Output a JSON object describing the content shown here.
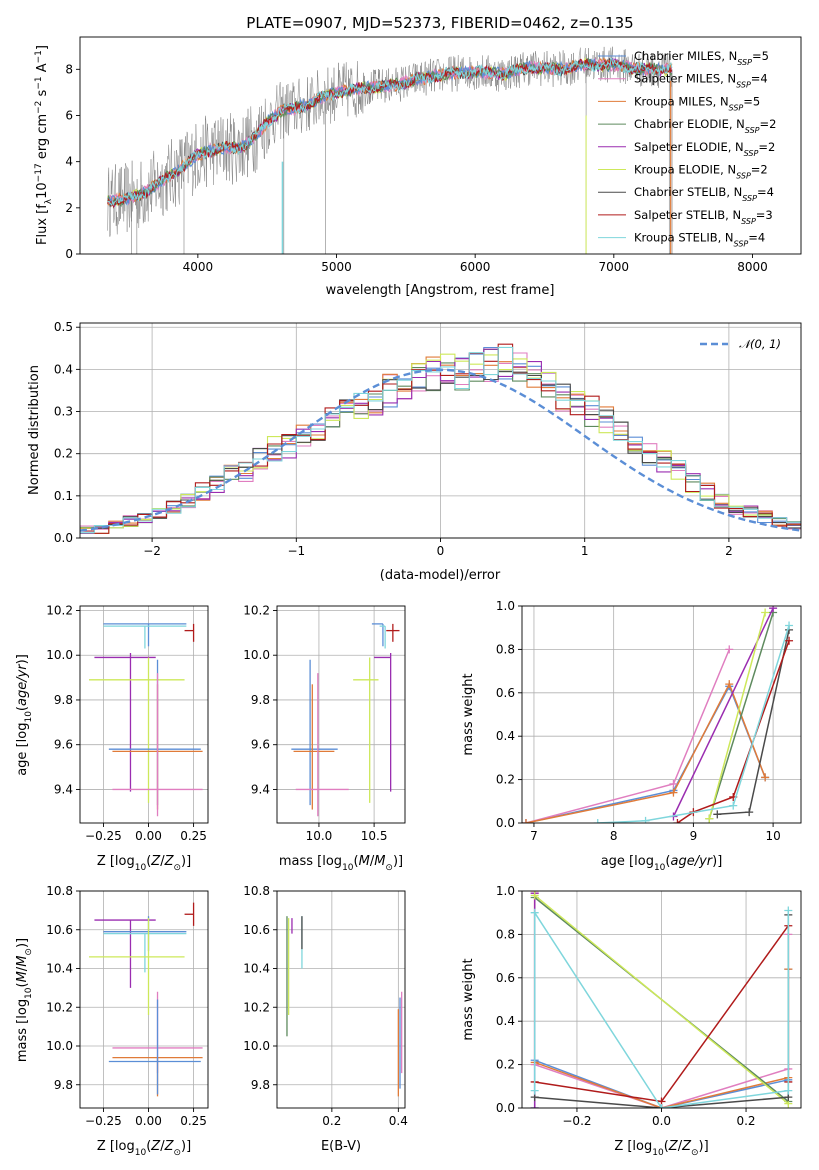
{
  "figure_title": "PLATE=0907, MJD=52373, FIBERID=0462, z=0.135",
  "colors": {
    "chabrier_miles": "#5b8ed6",
    "salpeter_miles": "#e07ec0",
    "kroupa_miles": "#e07b39",
    "chabrier_elodie": "#5e8a5e",
    "salpeter_elodie": "#9a2db0",
    "kroupa_elodie": "#cde85a",
    "chabrier_stelib": "#4a4a4a",
    "salpeter_stelib": "#b01b1b",
    "kroupa_stelib": "#7fd6dc",
    "data": "#808080",
    "grid": "#b0b0b0"
  },
  "chart_data": [
    {
      "id": "spectrum",
      "type": "line",
      "title": "PLATE=0907, MJD=52373, FIBERID=0462, z=0.135",
      "xlabel": "wavelength [Angstrom, rest frame]",
      "ylabel": "Flux [f_λ 10^-17 erg cm^-2 s^-1 A^-1]",
      "xlim": [
        3150,
        8350
      ],
      "ylim": [
        0,
        9.4
      ],
      "xticks": [
        4000,
        5000,
        6000,
        7000,
        8000
      ],
      "yticks": [
        0,
        2,
        4,
        6,
        8
      ],
      "grid": false,
      "legend_position": "top-right",
      "continuum": {
        "x": [
          3350,
          3500,
          3600,
          3700,
          3800,
          3900,
          4000,
          4100,
          4200,
          4300,
          4400,
          4500,
          4600,
          4700,
          4800,
          4900,
          5000,
          5200,
          5400,
          5600,
          5800,
          6000,
          6200,
          6400,
          6600,
          6800,
          7000,
          7200,
          7400
        ],
        "y": [
          2.3,
          2.4,
          2.6,
          3.0,
          3.4,
          3.8,
          4.3,
          4.5,
          4.6,
          4.6,
          5.0,
          5.7,
          6.2,
          6.3,
          6.5,
          6.8,
          7.0,
          7.2,
          7.3,
          7.6,
          7.8,
          7.9,
          7.8,
          8.1,
          8.0,
          8.2,
          8.2,
          8.0,
          8.0
        ]
      },
      "series": [
        {
          "name": "Chabrier MILES, N_SSP=5",
          "legend_main": "Chabrier MILES, N",
          "legend_sub": "SSP",
          "legend_tail": "=5",
          "color_key": "chabrier_miles"
        },
        {
          "name": "Salpeter MILES, N_SSP=4",
          "legend_main": "Salpeter MILES, N",
          "legend_sub": "SSP",
          "legend_tail": "=4",
          "color_key": "salpeter_miles"
        },
        {
          "name": "Kroupa MILES, N_SSP=5",
          "legend_main": "Kroupa MILES, N",
          "legend_sub": "SSP",
          "legend_tail": "=5",
          "color_key": "kroupa_miles"
        },
        {
          "name": "Chabrier ELODIE, N_SSP=2",
          "legend_main": "Chabrier ELODIE, N",
          "legend_sub": "SSP",
          "legend_tail": "=2",
          "color_key": "chabrier_elodie"
        },
        {
          "name": "Salpeter ELODIE, N_SSP=2",
          "legend_main": "Salpeter ELODIE, N",
          "legend_sub": "SSP",
          "legend_tail": "=2",
          "color_key": "salpeter_elodie"
        },
        {
          "name": "Kroupa ELODIE, N_SSP=2",
          "legend_main": "Kroupa ELODIE, N",
          "legend_sub": "SSP",
          "legend_tail": "=2",
          "color_key": "kroupa_elodie"
        },
        {
          "name": "Chabrier STELIB, N_SSP=4",
          "legend_main": "Chabrier STELIB, N",
          "legend_sub": "SSP",
          "legend_tail": "=4",
          "color_key": "chabrier_stelib"
        },
        {
          "name": "Salpeter STELIB, N_SSP=3",
          "legend_main": "Salpeter STELIB, N",
          "legend_sub": "SSP",
          "legend_tail": "=3",
          "color_key": "salpeter_stelib"
        },
        {
          "name": "Kroupa STELIB, N_SSP=4",
          "legend_main": "Kroupa STELIB, N",
          "legend_sub": "SSP",
          "legend_tail": "=4",
          "color_key": "kroupa_stelib"
        }
      ]
    },
    {
      "id": "residuals",
      "type": "line",
      "xlabel": "(data-model)/error",
      "ylabel": "Normed distribution",
      "xlim": [
        -2.5,
        2.5
      ],
      "ylim": [
        0,
        0.51
      ],
      "xticks": [
        -2,
        -1,
        0,
        1,
        2
      ],
      "yticks": [
        0.0,
        0.1,
        0.2,
        0.3,
        0.4,
        0.5
      ],
      "grid": true,
      "legend_position": "top-right",
      "legend_label": "𝒩(0, 1)",
      "bin_edges_start": -2.5,
      "bin_width": 0.1,
      "base_hist": [
        0.02,
        0.02,
        0.03,
        0.04,
        0.05,
        0.06,
        0.07,
        0.09,
        0.11,
        0.13,
        0.15,
        0.16,
        0.19,
        0.21,
        0.22,
        0.24,
        0.26,
        0.28,
        0.3,
        0.31,
        0.33,
        0.35,
        0.37,
        0.38,
        0.39,
        0.4,
        0.39,
        0.4,
        0.41,
        0.42,
        0.4,
        0.38,
        0.37,
        0.34,
        0.32,
        0.3,
        0.28,
        0.25,
        0.22,
        0.2,
        0.18,
        0.16,
        0.13,
        0.11,
        0.09,
        0.07,
        0.06,
        0.05,
        0.04,
        0.03
      ]
    },
    {
      "id": "age_vs_Z",
      "type": "scatter",
      "xlabel": "Z [log10(Z/Z☉)]",
      "ylabel": "age [log10(age/yr)]",
      "xlim": [
        -0.38,
        0.33
      ],
      "ylim": [
        9.25,
        10.22
      ],
      "xticks": [
        -0.25,
        0.0,
        0.25
      ],
      "yticks": [
        9.4,
        9.6,
        9.8,
        10.0,
        10.2
      ],
      "grid": true,
      "errorbars": [
        {
          "color_key": "chabrier_miles",
          "x": 0.0,
          "xerr": [
            0.25,
            0.21
          ],
          "y": 10.14,
          "yerr": [
            0.1,
            0.0
          ]
        },
        {
          "color_key": "kroupa_stelib",
          "x": -0.02,
          "xerr": [
            0.23,
            0.23
          ],
          "y": 10.13,
          "yerr": [
            0.1,
            0.0
          ]
        },
        {
          "color_key": "salpeter_stelib",
          "x": 0.25,
          "xerr": [
            0.05,
            0.0
          ],
          "y": 10.11,
          "yerr": [
            0.05,
            0.03
          ]
        },
        {
          "color_key": "salpeter_elodie",
          "x": -0.1,
          "xerr": [
            0.2,
            0.14
          ],
          "y": 9.99,
          "yerr": [
            0.6,
            0.02
          ]
        },
        {
          "color_key": "kroupa_elodie",
          "x": 0.0,
          "xerr": [
            0.33,
            0.2
          ],
          "y": 9.89,
          "yerr": [
            0.55,
            0.1
          ]
        },
        {
          "color_key": "chabrier_miles",
          "x": 0.05,
          "xerr": [
            0.27,
            0.24
          ],
          "y": 9.58,
          "yerr": [
            0.25,
            0.4
          ]
        },
        {
          "color_key": "kroupa_miles",
          "x": 0.05,
          "xerr": [
            0.25,
            0.25
          ],
          "y": 9.57,
          "yerr": [
            0.26,
            0.3
          ]
        },
        {
          "color_key": "salpeter_miles",
          "x": 0.05,
          "xerr": [
            0.25,
            0.25
          ],
          "y": 9.4,
          "yerr": [
            0.12,
            0.52
          ]
        }
      ]
    },
    {
      "id": "age_vs_mass",
      "type": "scatter",
      "xlabel": "mass [log10(M/M☉)]",
      "ylabel": "",
      "xlim": [
        9.62,
        10.78
      ],
      "ylim": [
        9.25,
        10.22
      ],
      "xticks": [
        10.0,
        10.5
      ],
      "yticks": [
        9.4,
        9.6,
        9.8,
        10.0,
        10.2
      ],
      "grid": true,
      "errorbars": [
        {
          "color_key": "chabrier_miles",
          "x": 10.58,
          "xerr": [
            0.1,
            0.0
          ],
          "y": 10.14,
          "yerr": [
            0.1,
            0.0
          ]
        },
        {
          "color_key": "kroupa_stelib",
          "x": 10.6,
          "xerr": [
            0.05,
            0.0
          ],
          "y": 10.13,
          "yerr": [
            0.1,
            0.0
          ]
        },
        {
          "color_key": "salpeter_stelib",
          "x": 10.67,
          "xerr": [
            0.06,
            0.06
          ],
          "y": 10.11,
          "yerr": [
            0.05,
            0.03
          ]
        },
        {
          "color_key": "salpeter_elodie",
          "x": 10.65,
          "xerr": [
            0.15,
            0.0
          ],
          "y": 9.99,
          "yerr": [
            0.6,
            0.02
          ]
        },
        {
          "color_key": "kroupa_elodie",
          "x": 10.46,
          "xerr": [
            0.15,
            0.08
          ],
          "y": 9.89,
          "yerr": [
            0.55,
            0.1
          ]
        },
        {
          "color_key": "chabrier_miles",
          "x": 9.92,
          "xerr": [
            0.17,
            0.25
          ],
          "y": 9.58,
          "yerr": [
            0.25,
            0.4
          ]
        },
        {
          "color_key": "kroupa_miles",
          "x": 9.94,
          "xerr": [
            0.17,
            0.2
          ],
          "y": 9.57,
          "yerr": [
            0.26,
            0.3
          ]
        },
        {
          "color_key": "salpeter_miles",
          "x": 9.99,
          "xerr": [
            0.2,
            0.28
          ],
          "y": 9.4,
          "yerr": [
            0.12,
            0.52
          ]
        }
      ]
    },
    {
      "id": "weight_vs_age",
      "type": "line",
      "xlabel": "age [log10(age/yr)]",
      "ylabel": "mass weight",
      "xlim": [
        6.85,
        10.35
      ],
      "ylim": [
        0,
        1.0
      ],
      "xticks": [
        7,
        8,
        9,
        10
      ],
      "yticks": [
        0.0,
        0.2,
        0.4,
        0.6,
        0.8,
        1.0
      ],
      "grid": true,
      "series": [
        {
          "color_key": "chabrier_miles",
          "x": [
            6.9,
            8.75,
            9.45,
            9.9
          ],
          "y": [
            0.0,
            0.15,
            0.63,
            0.21
          ]
        },
        {
          "color_key": "salpeter_miles",
          "x": [
            6.9,
            8.75,
            9.45
          ],
          "y": [
            0.0,
            0.18,
            0.8
          ]
        },
        {
          "color_key": "kroupa_miles",
          "x": [
            6.9,
            8.75,
            9.45,
            9.9
          ],
          "y": [
            0.0,
            0.14,
            0.64,
            0.21
          ]
        },
        {
          "color_key": "chabrier_elodie",
          "x": [
            9.2,
            10.0
          ],
          "y": [
            0.02,
            0.97
          ]
        },
        {
          "color_key": "salpeter_elodie",
          "x": [
            8.75,
            10.0
          ],
          "y": [
            0.03,
            0.99
          ]
        },
        {
          "color_key": "kroupa_elodie",
          "x": [
            9.2,
            9.9
          ],
          "y": [
            0.02,
            0.97
          ]
        },
        {
          "color_key": "chabrier_stelib",
          "x": [
            9.3,
            9.7,
            10.2
          ],
          "y": [
            0.04,
            0.05,
            0.89
          ]
        },
        {
          "color_key": "salpeter_stelib",
          "x": [
            8.8,
            9.0,
            9.5,
            10.2
          ],
          "y": [
            0.0,
            0.05,
            0.12,
            0.84
          ]
        },
        {
          "color_key": "kroupa_stelib",
          "x": [
            7.8,
            8.4,
            9.5,
            10.2
          ],
          "y": [
            0.0,
            0.01,
            0.08,
            0.91
          ]
        }
      ]
    },
    {
      "id": "mass_vs_Z",
      "type": "scatter",
      "xlabel": "Z [log10(Z/Z☉)]",
      "ylabel": "mass [log10(M/M☉)]",
      "xlim": [
        -0.38,
        0.33
      ],
      "ylim": [
        9.68,
        10.8
      ],
      "xticks": [
        -0.25,
        0.0,
        0.25
      ],
      "yticks": [
        9.8,
        10.0,
        10.2,
        10.4,
        10.6,
        10.8
      ],
      "grid": true,
      "errorbars": [
        {
          "color_key": "salpeter_stelib",
          "x": 0.25,
          "xerr": [
            0.05,
            0.0
          ],
          "y": 10.68,
          "yerr": [
            0.06,
            0.06
          ]
        },
        {
          "color_key": "salpeter_elodie",
          "x": -0.1,
          "xerr": [
            0.2,
            0.14
          ],
          "y": 10.65,
          "yerr": [
            0.35,
            0.0
          ]
        },
        {
          "color_key": "chabrier_miles",
          "x": 0.0,
          "xerr": [
            0.25,
            0.21
          ],
          "y": 10.59,
          "yerr": [
            0.1,
            0.08
          ]
        },
        {
          "color_key": "kroupa_stelib",
          "x": -0.02,
          "xerr": [
            0.23,
            0.23
          ],
          "y": 10.58,
          "yerr": [
            0.2,
            0.0
          ]
        },
        {
          "color_key": "kroupa_elodie",
          "x": 0.0,
          "xerr": [
            0.33,
            0.2
          ],
          "y": 10.46,
          "yerr": [
            0.3,
            0.2
          ]
        },
        {
          "color_key": "salpeter_miles",
          "x": 0.05,
          "xerr": [
            0.25,
            0.25
          ],
          "y": 9.99,
          "yerr": [
            0.13,
            0.29
          ]
        },
        {
          "color_key": "kroupa_miles",
          "x": 0.05,
          "xerr": [
            0.25,
            0.25
          ],
          "y": 9.94,
          "yerr": [
            0.2,
            0.0
          ]
        },
        {
          "color_key": "chabrier_miles",
          "x": 0.05,
          "xerr": [
            0.27,
            0.24
          ],
          "y": 9.92,
          "yerr": [
            0.17,
            0.32
          ]
        }
      ]
    },
    {
      "id": "mass_vs_ebv",
      "type": "scatter",
      "xlabel": "E(B-V)",
      "ylabel": "",
      "xlim": [
        0.035,
        0.42
      ],
      "ylim": [
        9.68,
        10.8
      ],
      "xticks": [
        0.2,
        0.4
      ],
      "yticks": [
        9.8,
        10.0,
        10.2,
        10.4,
        10.6,
        10.8
      ],
      "grid": true,
      "errorbars": [
        {
          "color_key": "salpeter_elodie",
          "x": 0.08,
          "xerr": [
            0.0,
            0.0
          ],
          "y": 10.63,
          "yerr": [
            0.05,
            0.03
          ]
        },
        {
          "color_key": "kroupa_elodie",
          "x": 0.07,
          "xerr": [
            0.0,
            0.0
          ],
          "y": 10.46,
          "yerr": [
            0.3,
            0.2
          ]
        },
        {
          "color_key": "chabrier_elodie",
          "x": 0.065,
          "xerr": [
            0.0,
            0.0
          ],
          "y": 10.6,
          "yerr": [
            0.55,
            0.07
          ]
        },
        {
          "color_key": "kroupa_stelib",
          "x": 0.11,
          "xerr": [
            0.0,
            0.0
          ],
          "y": 10.55,
          "yerr": [
            0.15,
            0.12
          ]
        },
        {
          "color_key": "chabrier_stelib",
          "x": 0.11,
          "xerr": [
            0.0,
            0.0
          ],
          "y": 10.6,
          "yerr": [
            0.1,
            0.07
          ]
        },
        {
          "color_key": "salpeter_miles",
          "x": 0.41,
          "xerr": [
            0.0,
            0.0
          ],
          "y": 9.99,
          "yerr": [
            0.13,
            0.29
          ]
        },
        {
          "color_key": "kroupa_miles",
          "x": 0.4,
          "xerr": [
            0.0,
            0.0
          ],
          "y": 9.94,
          "yerr": [
            0.2,
            0.25
          ]
        },
        {
          "color_key": "chabrier_miles",
          "x": 0.405,
          "xerr": [
            0.0,
            0.0
          ],
          "y": 10.0,
          "yerr": [
            0.22,
            0.25
          ]
        }
      ]
    },
    {
      "id": "weight_vs_Z",
      "type": "line",
      "xlabel": "Z [log10(Z/Z☉)]",
      "ylabel": "mass weight",
      "xlim": [
        -0.33,
        0.33
      ],
      "ylim": [
        0,
        1.0
      ],
      "xticks": [
        -0.2,
        0.0,
        0.2
      ],
      "yticks": [
        0.0,
        0.2,
        0.4,
        0.6,
        0.8,
        1.0
      ],
      "grid": true,
      "series": [
        {
          "color_key": "chabrier_miles",
          "x": [
            -0.3,
            -0.3,
            0.0,
            0.3,
            0.3
          ],
          "y": [
            0.0,
            0.22,
            0.0,
            0.13,
            0.64
          ]
        },
        {
          "color_key": "salpeter_miles",
          "x": [
            -0.3,
            -0.3,
            0.0,
            0.3,
            0.3
          ],
          "y": [
            0.99,
            0.2,
            0.0,
            0.18,
            0.8
          ]
        },
        {
          "color_key": "kroupa_miles",
          "x": [
            -0.3,
            -0.3,
            0.0,
            0.3,
            0.3
          ],
          "y": [
            1.0,
            0.21,
            0.0,
            0.14,
            0.64
          ]
        },
        {
          "color_key": "chabrier_elodie",
          "x": [
            -0.3,
            0.3
          ],
          "y": [
            0.97,
            0.03
          ]
        },
        {
          "color_key": "salpeter_elodie",
          "x": [
            -0.3,
            -0.3
          ],
          "y": [
            0.0,
            0.99
          ]
        },
        {
          "color_key": "kroupa_elodie",
          "x": [
            -0.3,
            0.3
          ],
          "y": [
            0.98,
            0.02
          ]
        },
        {
          "color_key": "chabrier_stelib",
          "x": [
            -0.3,
            0.0,
            0.3,
            0.3
          ],
          "y": [
            0.05,
            0.0,
            0.05,
            0.89
          ]
        },
        {
          "color_key": "salpeter_stelib",
          "x": [
            -0.3,
            0.0,
            0.3,
            0.3
          ],
          "y": [
            0.12,
            0.03,
            0.84,
            0.12
          ]
        },
        {
          "color_key": "kroupa_stelib",
          "x": [
            -0.3,
            -0.3,
            0.0,
            0.3,
            0.3
          ],
          "y": [
            0.08,
            0.9,
            0.0,
            0.08,
            0.91
          ]
        }
      ]
    }
  ]
}
